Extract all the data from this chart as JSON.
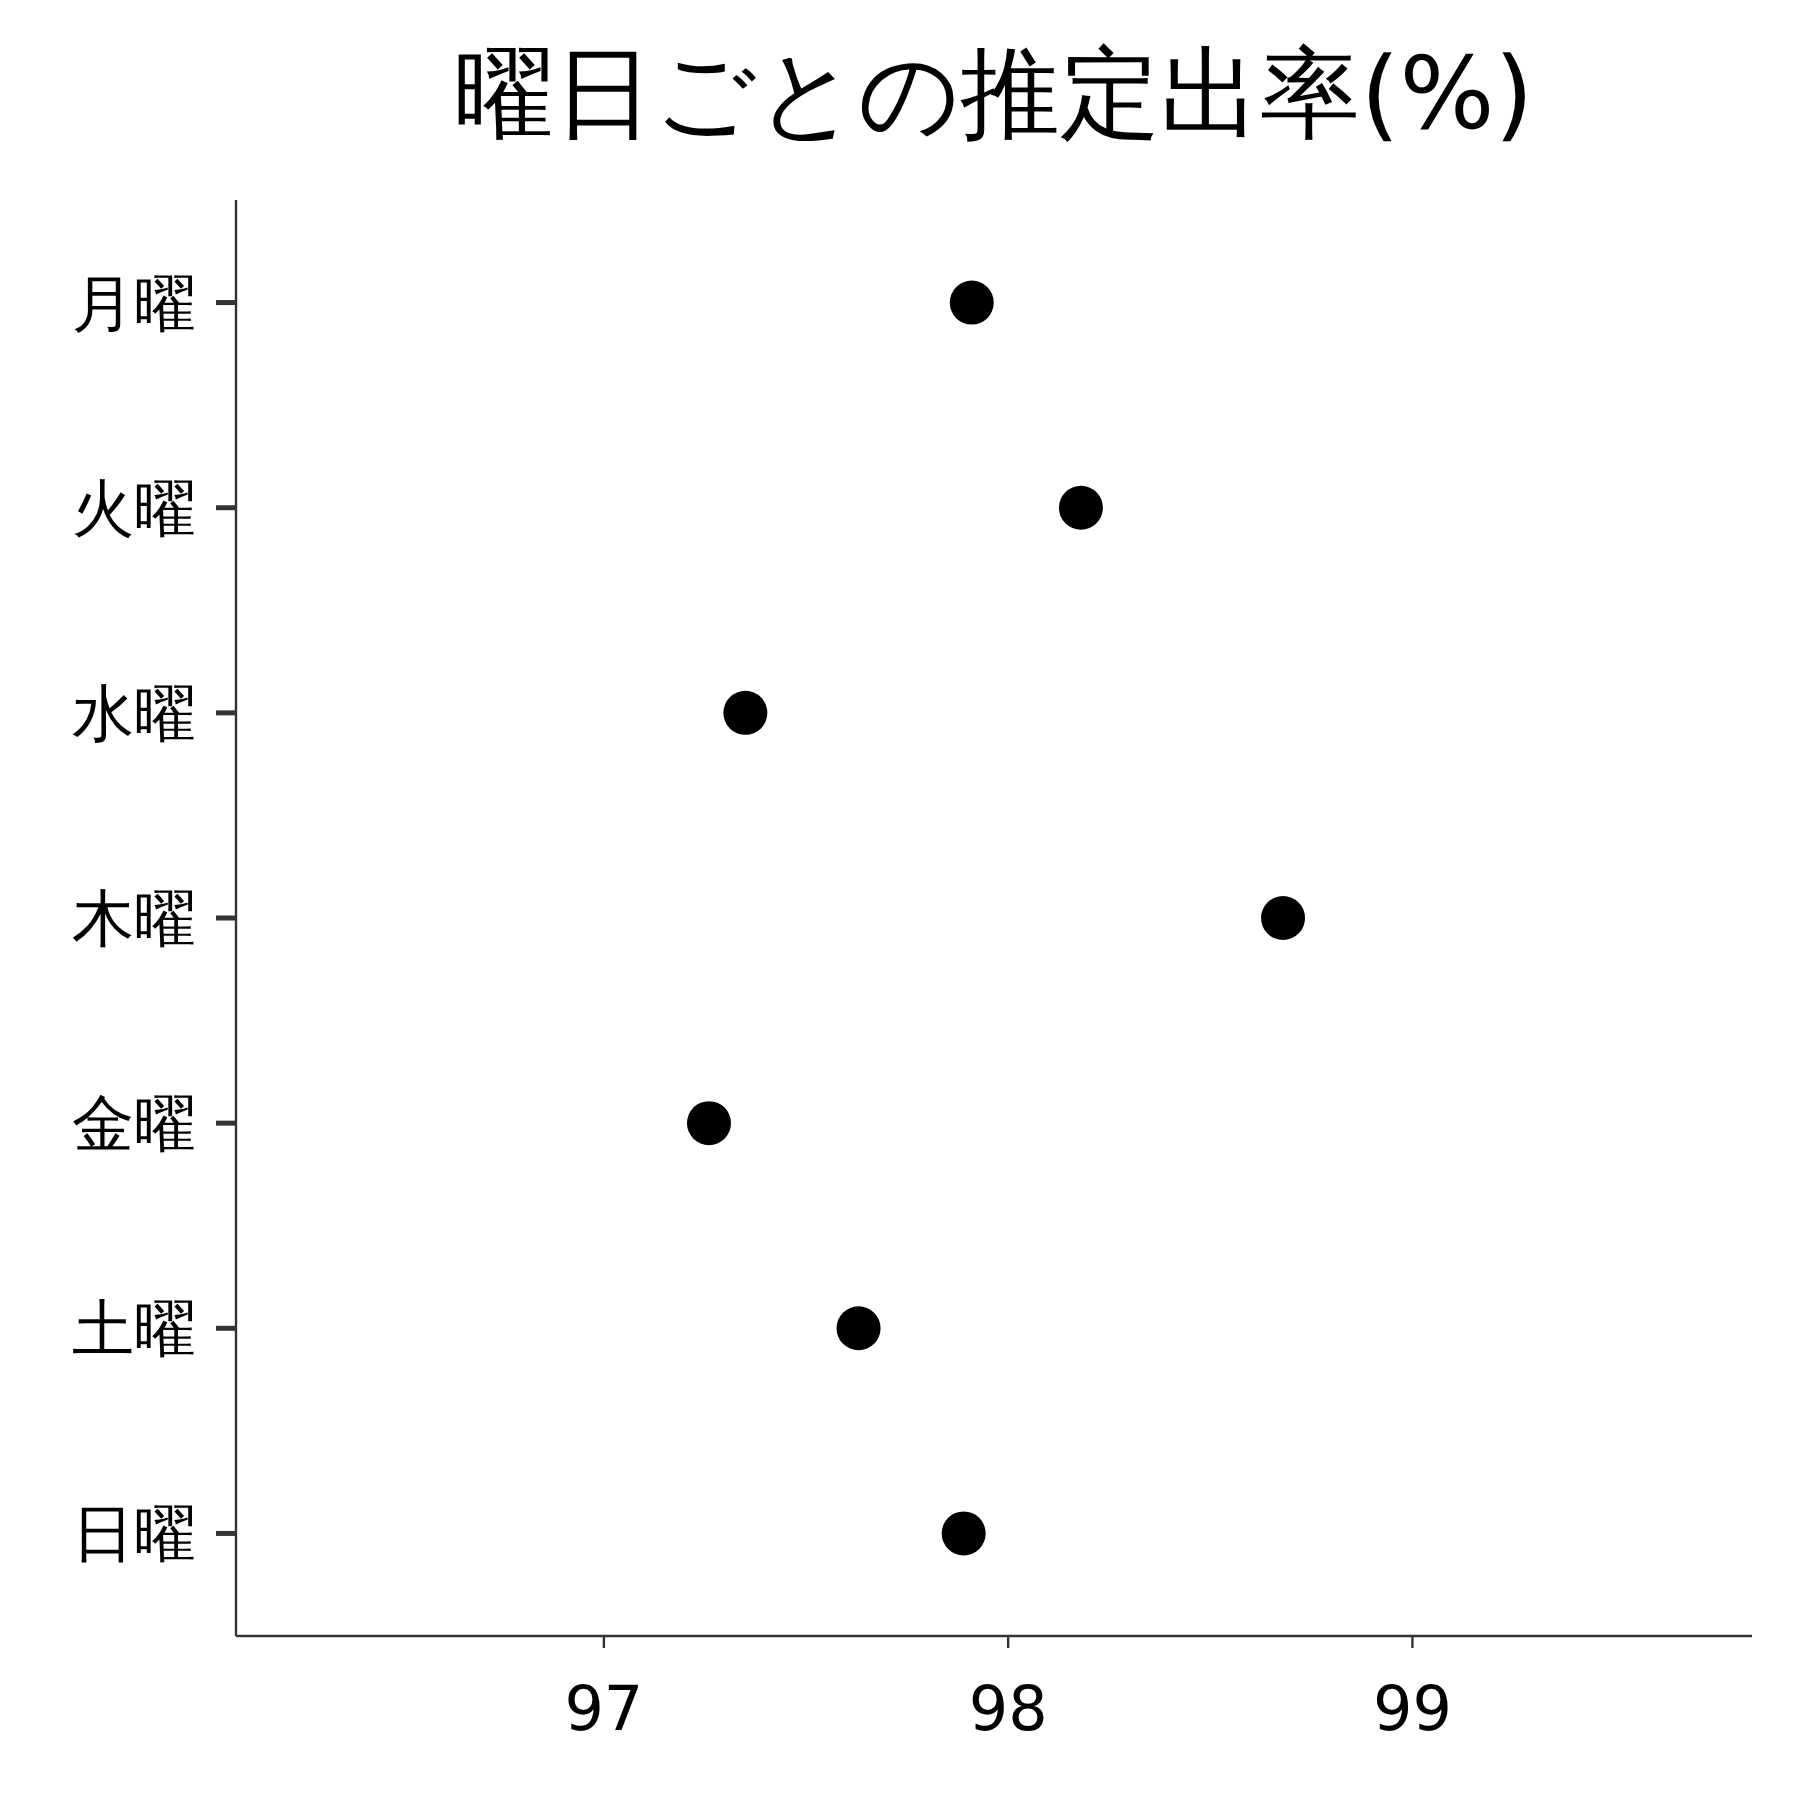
{
  "chart_data": {
    "type": "scatter",
    "orientation": "horizontal",
    "title": "曜日ごとの推定出率(%)",
    "categories": [
      "月曜",
      "火曜",
      "水曜",
      "木曜",
      "金曜",
      "土曜",
      "日曜"
    ],
    "values": [
      97.91,
      98.18,
      97.35,
      98.68,
      97.26,
      97.63,
      97.89
    ],
    "color": "#000000",
    "marker": "circle",
    "grid": false,
    "xlim": [
      96.09,
      99.84
    ],
    "xticks": [
      97,
      98,
      99
    ]
  }
}
